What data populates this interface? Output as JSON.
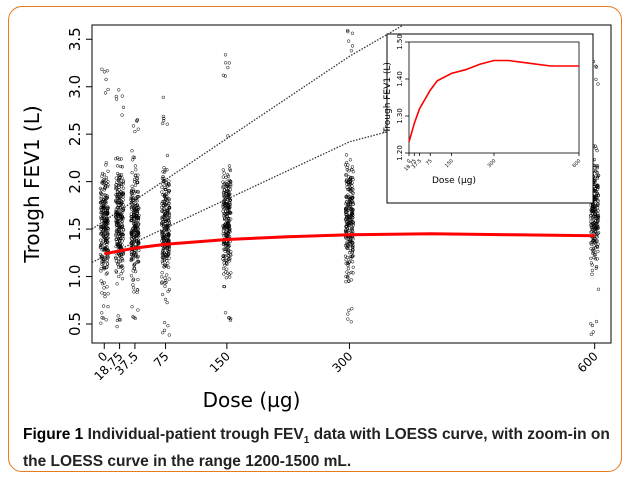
{
  "figure": {
    "label": "Figure 1",
    "caption_pre": "Individual-patient trough FEV",
    "caption_sub": "1",
    "caption_post": " data with LOESS curve, with zoom-in on the LOESS curve in the range 1200-1500 mL."
  },
  "chart_data": [
    {
      "type": "scatter",
      "xlabel": "Dose (µg)",
      "ylabel": "Trough FEV1 (L)",
      "xlim": [
        -15,
        620
      ],
      "ylim": [
        0.3,
        3.65
      ],
      "x_ticks": [
        0,
        18.75,
        37.5,
        75,
        150,
        300,
        600
      ],
      "x_tick_labels": [
        "0",
        "18.75",
        "37.5",
        "75",
        "150",
        "300",
        "600"
      ],
      "y_ticks": [
        0.5,
        1.0,
        1.5,
        2.0,
        2.5,
        3.0,
        3.5
      ],
      "y_tick_labels": [
        "0.5",
        "1.0",
        "1.5",
        "2.0",
        "2.5",
        "3.0",
        "3.5"
      ],
      "point_columns": [
        {
          "x": 0,
          "y_min": 0.48,
          "y_max": 3.22
        },
        {
          "x": 18.75,
          "y_min": 0.45,
          "y_max": 3.0
        },
        {
          "x": 37.5,
          "y_min": 0.55,
          "y_max": 2.75
        },
        {
          "x": 75,
          "y_min": 0.38,
          "y_max": 2.9
        },
        {
          "x": 150,
          "y_min": 0.5,
          "y_max": 3.38
        },
        {
          "x": 300,
          "y_min": 0.52,
          "y_max": 3.65
        },
        {
          "x": 600,
          "y_min": 0.38,
          "y_max": 3.3
        }
      ],
      "series": [
        {
          "kind": "loess",
          "color": "#ff0000",
          "x": [
            0,
            18.75,
            37.5,
            75,
            150,
            225,
            300,
            400,
            500,
            600
          ],
          "y": [
            1.24,
            1.27,
            1.3,
            1.34,
            1.39,
            1.42,
            1.44,
            1.45,
            1.44,
            1.43
          ]
        },
        {
          "kind": "reference-line-upper",
          "style": "dotted",
          "color": "#333333",
          "x": [
            -15,
            300,
            366
          ],
          "y": [
            1.5,
            3.32,
            3.65
          ]
        },
        {
          "kind": "reference-line-lower",
          "style": "dotted",
          "color": "#333333",
          "x": [
            -15,
            300,
            366
          ],
          "y": [
            1.15,
            2.42,
            2.57
          ]
        }
      ]
    },
    {
      "type": "line",
      "role": "inset-zoom",
      "xlabel": "Dose (µg)",
      "ylabel": "Trough FEV1 (L)",
      "xlim": [
        0,
        600
      ],
      "ylim": [
        1.2,
        1.5
      ],
      "x_ticks": [
        0,
        18.75,
        37.5,
        75,
        150,
        300,
        600
      ],
      "x_tick_labels": [
        "0",
        "18.75",
        "37.5",
        "75",
        "150",
        "300",
        "600"
      ],
      "y_ticks": [
        1.2,
        1.3,
        1.4,
        1.5
      ],
      "y_tick_labels": [
        "1.20",
        "1.30",
        "1.40",
        "1.50"
      ],
      "series": [
        {
          "color": "#ff0000",
          "x": [
            0,
            18.75,
            37.5,
            75,
            100,
            150,
            200,
            250,
            300,
            350,
            400,
            450,
            500,
            550,
            600
          ],
          "y": [
            1.23,
            1.28,
            1.32,
            1.37,
            1.395,
            1.415,
            1.425,
            1.44,
            1.45,
            1.45,
            1.445,
            1.44,
            1.435,
            1.435,
            1.435
          ]
        }
      ]
    }
  ]
}
